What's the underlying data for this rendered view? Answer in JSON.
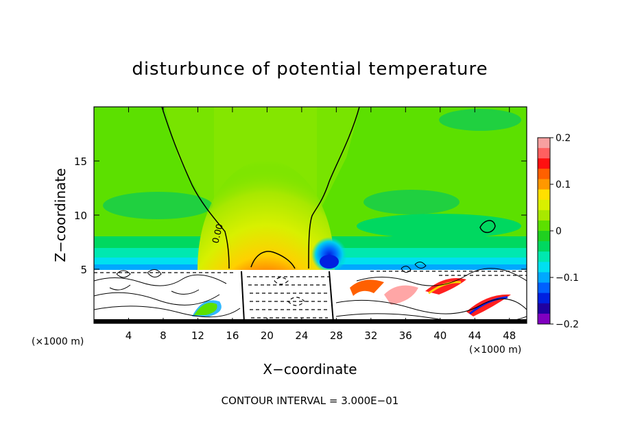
{
  "chart_data": {
    "type": "heatmap",
    "title": "disturbunce of potential temperature",
    "xlabel": "X−coordinate",
    "ylabel": "Z−coordinate",
    "x_unit": "(×1000 m)",
    "xlim": [
      0,
      50
    ],
    "ylim": [
      0,
      20
    ],
    "x_ticks": [
      4,
      8,
      12,
      16,
      20,
      24,
      28,
      32,
      36,
      40,
      44,
      48
    ],
    "x_tick_labels": [
      "4",
      "8",
      "12",
      "16",
      "20",
      "24",
      "28",
      "32",
      "36",
      "40",
      "44",
      "48"
    ],
    "y_ticks": [
      5,
      10,
      15
    ],
    "y_tick_labels": [
      "5",
      "10",
      "15"
    ],
    "colorbar": {
      "range": [
        -0.2,
        0.2
      ],
      "ticks": [
        0.2,
        0.1,
        0,
        -0.1,
        -0.2
      ],
      "tick_labels": [
        "0.2",
        "0.1",
        "0",
        "−0.1",
        "−0.2"
      ],
      "colors": [
        "#f7a0a0",
        "#ff6060",
        "#ff1010",
        "#ff6000",
        "#ff9800",
        "#ffe000",
        "#d8f000",
        "#a8e800",
        "#5ce000",
        "#20d020",
        "#00d860",
        "#00e8b0",
        "#00e0f0",
        "#00a8ff",
        "#0060ff",
        "#0020e0",
        "#2000a0",
        "#8000c0"
      ]
    },
    "annotations": [
      "0.00"
    ],
    "contour_interval_text": "CONTOUR INTERVAL = 3.000E−01"
  }
}
